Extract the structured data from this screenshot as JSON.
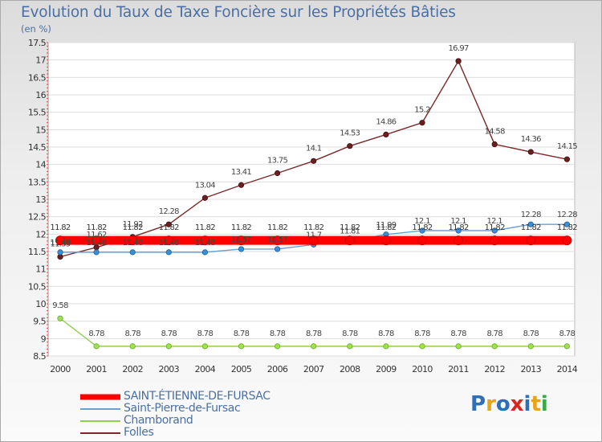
{
  "title": "Evolution du Taux de Taxe Foncière sur les Propriétés Bâties",
  "unit_label": "(en %)",
  "logo": {
    "text": "Proxiti",
    "colors": [
      "#2f6fb7",
      "#e8a317",
      "#2f6fb7",
      "#d9251d",
      "#2f6fb7",
      "#e8a317",
      "#3aa84a"
    ]
  },
  "chart_data": {
    "type": "line",
    "title": "Evolution du Taux de Taxe Foncière sur les Propriétés Bâties",
    "ylabel": "(en %)",
    "xlabel": "",
    "ylim": [
      8.5,
      17.5
    ],
    "yticks": [
      "8.5",
      "9",
      "9.5",
      "10",
      "10.5",
      "11",
      "11.5",
      "12",
      "12.5",
      "13",
      "13.5",
      "14",
      "14.5",
      "15",
      "15.5",
      "16",
      "16.5",
      "17",
      "17.5"
    ],
    "categories": [
      "2000",
      "2001",
      "2002",
      "2003",
      "2004",
      "2005",
      "2006",
      "2007",
      "2008",
      "2009",
      "2010",
      "2011",
      "2012",
      "2013",
      "2014"
    ],
    "series": [
      {
        "name": "SAINT-ÉTIENNE-DE-FURSAC",
        "color": "#ff0000",
        "values": [
          11.82,
          11.82,
          11.82,
          11.82,
          11.82,
          11.82,
          11.82,
          11.82,
          11.82,
          11.82,
          11.82,
          11.82,
          11.82,
          11.82,
          11.82
        ],
        "labels": [
          "11.82",
          "11.82",
          "11.82",
          "11.82",
          "11.82",
          "11.82",
          "11.82",
          "11.82",
          "11.82",
          "11.82",
          "11.82",
          "11.82",
          "11.82",
          "11.82",
          "11.82"
        ]
      },
      {
        "name": "Saint-Pierre-de-Fursac",
        "color": "#6a9fd4",
        "values": [
          11.48,
          11.48,
          11.48,
          11.48,
          11.48,
          11.57,
          11.57,
          11.7,
          11.81,
          11.99,
          12.1,
          12.1,
          12.1,
          12.28,
          12.28
        ],
        "labels": [
          "11.48",
          "11.48",
          "11.48",
          "11.48",
          "11.48",
          "11.57",
          "11.57",
          "11.7",
          "11.81",
          "11.99",
          "12.1",
          "12.1",
          "12.1",
          "12.28",
          "12.28"
        ]
      },
      {
        "name": "Chamborand",
        "color": "#90d050",
        "values": [
          9.58,
          8.78,
          8.78,
          8.78,
          8.78,
          8.78,
          8.78,
          8.78,
          8.78,
          8.78,
          8.78,
          8.78,
          8.78,
          8.78,
          8.78
        ],
        "labels": [
          "9.58",
          "8.78",
          "8.78",
          "8.78",
          "8.78",
          "8.78",
          "8.78",
          "8.78",
          "8.78",
          "8.78",
          "8.78",
          "8.78",
          "8.78",
          "8.78",
          "8.78"
        ]
      },
      {
        "name": "Folles",
        "color": "#7a2a2a",
        "values": [
          11.35,
          11.62,
          11.92,
          12.28,
          13.04,
          13.41,
          13.75,
          14.1,
          14.53,
          14.86,
          15.2,
          16.97,
          14.58,
          14.36,
          14.15
        ],
        "labels": [
          "11.35",
          "11.62",
          "11.92",
          "12.28",
          "13.04",
          "13.41",
          "13.75",
          "14.1",
          "14.53",
          "14.86",
          "15.2",
          "16.97",
          "14.58",
          "14.36",
          "14.15"
        ]
      }
    ]
  }
}
